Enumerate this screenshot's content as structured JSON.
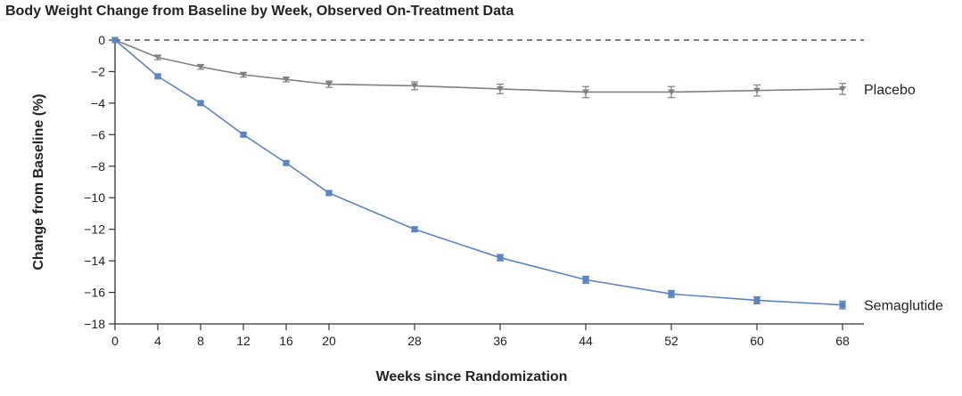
{
  "chart_data": {
    "type": "line",
    "title": "Body Weight Change from Baseline by Week, Observed On-Treatment Data",
    "xlabel": "Weeks since Randomization",
    "ylabel": "Change from Baseline (%)",
    "x": [
      0,
      4,
      8,
      12,
      16,
      20,
      28,
      36,
      44,
      52,
      60,
      68
    ],
    "xlim": [
      0,
      70
    ],
    "ylim": [
      -18,
      0
    ],
    "xticks": [
      "0",
      "4",
      "8",
      "12",
      "16",
      "20",
      "28",
      "36",
      "44",
      "52",
      "60",
      "68"
    ],
    "yticks": [
      "0",
      "−2",
      "−4",
      "−6",
      "−8",
      "−10",
      "−12",
      "−14",
      "−16",
      "−18"
    ],
    "reference_line": {
      "y": 0,
      "style": "dashed"
    },
    "grid": false,
    "legend": "direct labels at line ends",
    "series": [
      {
        "name": "Placebo",
        "color": "#808080",
        "marker": "triangle-down",
        "values": [
          0,
          -1.1,
          -1.7,
          -2.2,
          -2.5,
          -2.8,
          -2.9,
          -3.1,
          -3.3,
          -3.3,
          -3.2,
          -3.1
        ],
        "error": [
          0,
          0.15,
          0.15,
          0.15,
          0.15,
          0.2,
          0.25,
          0.3,
          0.35,
          0.35,
          0.35,
          0.35
        ]
      },
      {
        "name": "Semaglutide",
        "color": "#5b84c4",
        "marker": "square",
        "values": [
          0,
          -2.3,
          -4.0,
          -6.0,
          -7.8,
          -9.7,
          -12.0,
          -13.8,
          -15.2,
          -16.1,
          -16.5,
          -16.8
        ],
        "error": [
          0,
          0.1,
          0.1,
          0.1,
          0.12,
          0.12,
          0.15,
          0.2,
          0.22,
          0.22,
          0.22,
          0.25
        ]
      }
    ]
  }
}
